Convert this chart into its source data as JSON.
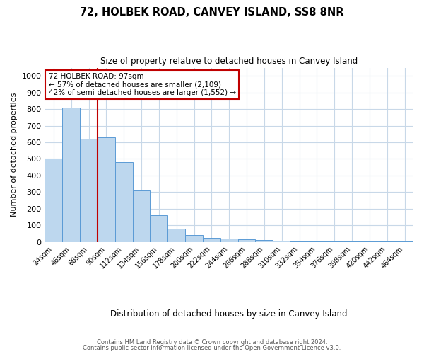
{
  "title": "72, HOLBEK ROAD, CANVEY ISLAND, SS8 8NR",
  "subtitle": "Size of property relative to detached houses in Canvey Island",
  "xlabel": "Distribution of detached houses by size in Canvey Island",
  "ylabel": "Number of detached properties",
  "footer1": "Contains HM Land Registry data © Crown copyright and database right 2024.",
  "footer2": "Contains public sector information licensed under the Open Government Licence v3.0.",
  "annotation_title": "72 HOLBEK ROAD: 97sqm",
  "annotation_line1": "← 57% of detached houses are smaller (2,109)",
  "annotation_line2": "42% of semi-detached houses are larger (1,552) →",
  "bar_labels": [
    "24sqm",
    "46sqm",
    "68sqm",
    "90sqm",
    "112sqm",
    "134sqm",
    "156sqm",
    "178sqm",
    "200sqm",
    "222sqm",
    "244sqm",
    "266sqm",
    "288sqm",
    "310sqm",
    "332sqm",
    "354sqm",
    "376sqm",
    "398sqm",
    "420sqm",
    "442sqm",
    "464sqm"
  ],
  "bar_values": [
    500,
    810,
    620,
    630,
    480,
    310,
    160,
    80,
    42,
    22,
    20,
    15,
    10,
    7,
    4,
    3,
    2,
    2,
    1,
    1,
    1
  ],
  "bar_color": "#bdd7ee",
  "bar_edge_color": "#5b9bd5",
  "vline_x": 2.5,
  "vline_color": "#c00000",
  "ylim": [
    0,
    1050
  ],
  "yticks": [
    0,
    100,
    200,
    300,
    400,
    500,
    600,
    700,
    800,
    900,
    1000
  ],
  "annotation_box_color": "#c00000",
  "background_color": "#ffffff",
  "grid_color": "#c8d8e8"
}
